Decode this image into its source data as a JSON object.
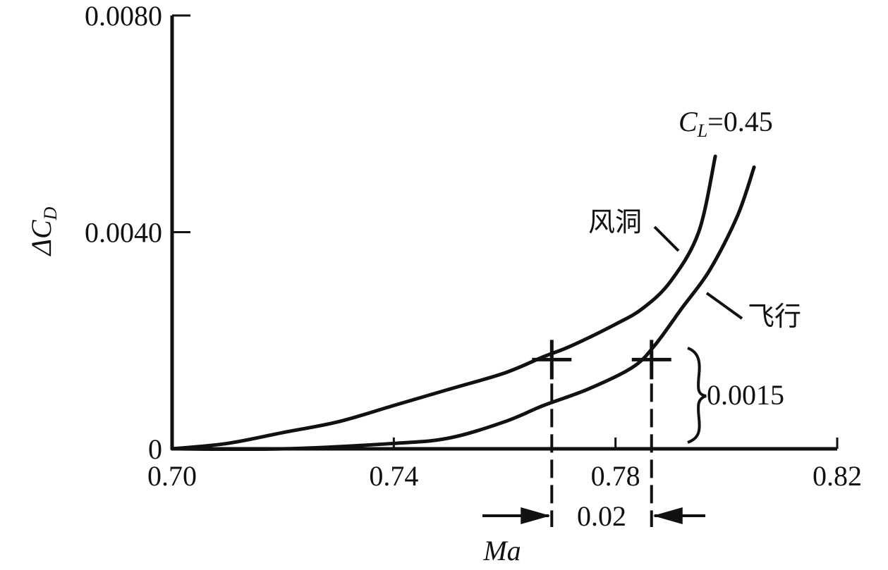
{
  "chart_data": {
    "type": "line",
    "x_range": [
      0.7,
      0.82
    ],
    "y_range": [
      0,
      0.008
    ],
    "x_ticks": [
      "0.70",
      "0.74",
      "0.78",
      "0.82"
    ],
    "y_ticks": [
      "0",
      "0.0040",
      "0.0080"
    ],
    "x_tick_values": [
      0.7,
      0.74,
      0.78,
      0.82
    ],
    "y_tick_values": [
      0,
      0.004,
      0.008
    ],
    "xlabel": "Ma",
    "ylabel_prefix": "ΔC",
    "ylabel_sub": "D",
    "series_label": {
      "prefix": "C",
      "sub": "L",
      "value": "=0.45"
    },
    "series": [
      {
        "name": "风洞",
        "x": [
          0.7,
          0.71,
          0.72,
          0.73,
          0.74,
          0.75,
          0.76,
          0.767,
          0.772,
          0.78,
          0.785,
          0.79,
          0.795,
          0.798
        ],
        "y": [
          0.0,
          0.0001,
          0.0003,
          0.0005,
          0.0008,
          0.0011,
          0.0014,
          0.0017,
          0.0019,
          0.0023,
          0.0026,
          0.0031,
          0.004,
          0.0054
        ]
      },
      {
        "name": "飞行",
        "x": [
          0.7,
          0.72,
          0.74,
          0.75,
          0.76,
          0.767,
          0.775,
          0.783,
          0.787,
          0.792,
          0.797,
          0.802,
          0.805
        ],
        "y": [
          0.0,
          0.0,
          0.0001,
          0.0002,
          0.0005,
          0.0008,
          0.0011,
          0.0015,
          0.0019,
          0.0026,
          0.0033,
          0.0043,
          0.0052
        ]
      }
    ],
    "markers": [
      {
        "x": 0.7685,
        "y": 0.0017,
        "series": "风洞"
      },
      {
        "x": 0.7865,
        "y": 0.0017,
        "series": "飞行"
      }
    ],
    "annotations": {
      "delta_cd": "0.0015",
      "delta_ma": "0.02"
    }
  }
}
